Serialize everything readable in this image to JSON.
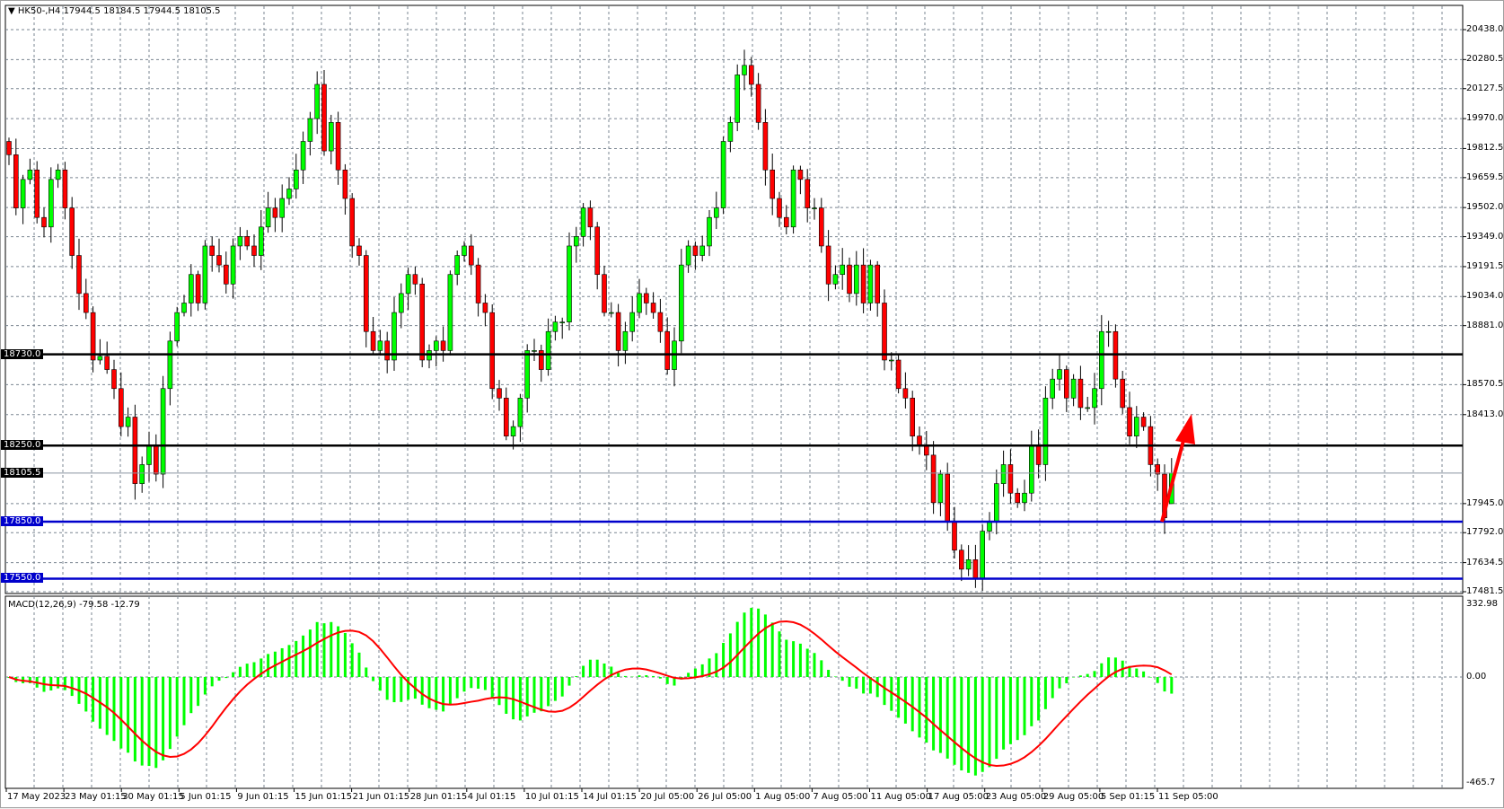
{
  "header": {
    "symbol": "HK50-,H4",
    "ohlc": "17944.5 18184.5 17944.5 18105.5"
  },
  "macd_label": "MACD(12,26,9) -79.58 -12.79",
  "colors": {
    "bull": "#00ff00",
    "bear": "#ff0000",
    "wick": "#000000",
    "support": "#0000cc",
    "resistance": "#000000",
    "macd_hist": "#00ff00",
    "macd_signal": "#ff0000",
    "arrow": "#ff0000",
    "grid": "#7a8591"
  },
  "chart_data": {
    "type": "candlestick",
    "symbol": "HK50-",
    "timeframe": "H4",
    "ylim": [
      17481.5,
      20438.0
    ],
    "grid": true,
    "price_ticks": [
      "20438.0",
      "20280.5",
      "20127.5",
      "19970.0",
      "19812.5",
      "19659.5",
      "19502.0",
      "19349.0",
      "19191.5",
      "19034.0",
      "18881.0",
      "18570.5",
      "18413.0",
      "17945.0",
      "17792.0",
      "17634.5",
      "17481.5"
    ],
    "horizontal_lines": [
      {
        "price": 18730.0,
        "label": "18730.0",
        "color": "#000000"
      },
      {
        "price": 18250.0,
        "label": "18250.0",
        "color": "#000000"
      },
      {
        "price": 17850.0,
        "label": "17850.0",
        "color": "#0000cc"
      },
      {
        "price": 17550.0,
        "label": "17550.0",
        "color": "#0000cc"
      }
    ],
    "current_price": {
      "price": 18105.5,
      "label": "18105.5"
    },
    "last_candle": {
      "open": 17944.5,
      "high": 18184.5,
      "low": 17944.5,
      "close": 18105.5
    },
    "first_open": 19850,
    "closes": [
      19780,
      19500,
      19650,
      19700,
      19450,
      19400,
      19650,
      19700,
      19500,
      19250,
      19050,
      18950,
      18700,
      18720,
      18650,
      18550,
      18350,
      18400,
      18050,
      18150,
      18250,
      18100,
      18550,
      18800,
      18950,
      19000,
      19150,
      19000,
      19300,
      19250,
      19200,
      19100,
      19300,
      19350,
      19300,
      19250,
      19400,
      19500,
      19450,
      19550,
      19600,
      19700,
      19850,
      19970,
      20150,
      19800,
      19950,
      19700,
      19550,
      19300,
      19250,
      18850,
      18750,
      18800,
      18700,
      18950,
      19050,
      19150,
      19100,
      18700,
      18750,
      18800,
      18750,
      19150,
      19250,
      19300,
      19200,
      19000,
      18950,
      18550,
      18500,
      18300,
      18350,
      18500,
      18750,
      18750,
      18650,
      18850,
      18900,
      18900,
      19300,
      19350,
      19500,
      19400,
      19150,
      18950,
      18950,
      18750,
      18850,
      18950,
      19050,
      19000,
      18950,
      18850,
      18650,
      18800,
      19200,
      19300,
      19250,
      19300,
      19450,
      19500,
      19850,
      19950,
      20200,
      20250,
      20150,
      19950,
      19700,
      19550,
      19450,
      19400,
      19700,
      19650,
      19500,
      19500,
      19300,
      19100,
      19150,
      19200,
      19050,
      19200,
      19000,
      19200,
      19000,
      18700,
      18700,
      18550,
      18500,
      18300,
      18250,
      18200,
      17950,
      18100,
      17850,
      17700,
      17600,
      17650,
      17550,
      17800,
      17850,
      18050,
      18150,
      18000,
      17950,
      18000,
      18250,
      18150,
      18500,
      18600,
      18650,
      18500,
      18600,
      18450,
      18450,
      18550,
      18850,
      18850,
      18600,
      18450,
      18300,
      18400,
      18350,
      18150,
      18100,
      17870,
      18105.5
    ],
    "macd": {
      "params": "12,26,9",
      "main": -79.58,
      "signal": -12.79,
      "ylim": [
        -465.7,
        332.98
      ],
      "ticks": [
        "332.98",
        "0.00",
        "-465.7"
      ]
    },
    "x_labels": [
      "17 May 2023",
      "23 May 01:15",
      "30 May 01:15",
      "5 Jun 01:15",
      "9 Jun 01:15",
      "15 Jun 01:15",
      "21 Jun 01:15",
      "28 Jun 01:15",
      "4 Jul 01:15",
      "10 Jul 01:15",
      "14 Jul 01:15",
      "20 Jul 05:00",
      "26 Jul 05:00",
      "1 Aug 05:00",
      "7 Aug 05:00",
      "11 Aug 05:00",
      "17 Aug 05:00",
      "23 Aug 05:00",
      "29 Aug 05:00",
      "5 Sep 01:15",
      "11 Sep 05:00"
    ],
    "annotation": {
      "type": "arrow",
      "direction": "up",
      "color": "#ff0000"
    }
  }
}
